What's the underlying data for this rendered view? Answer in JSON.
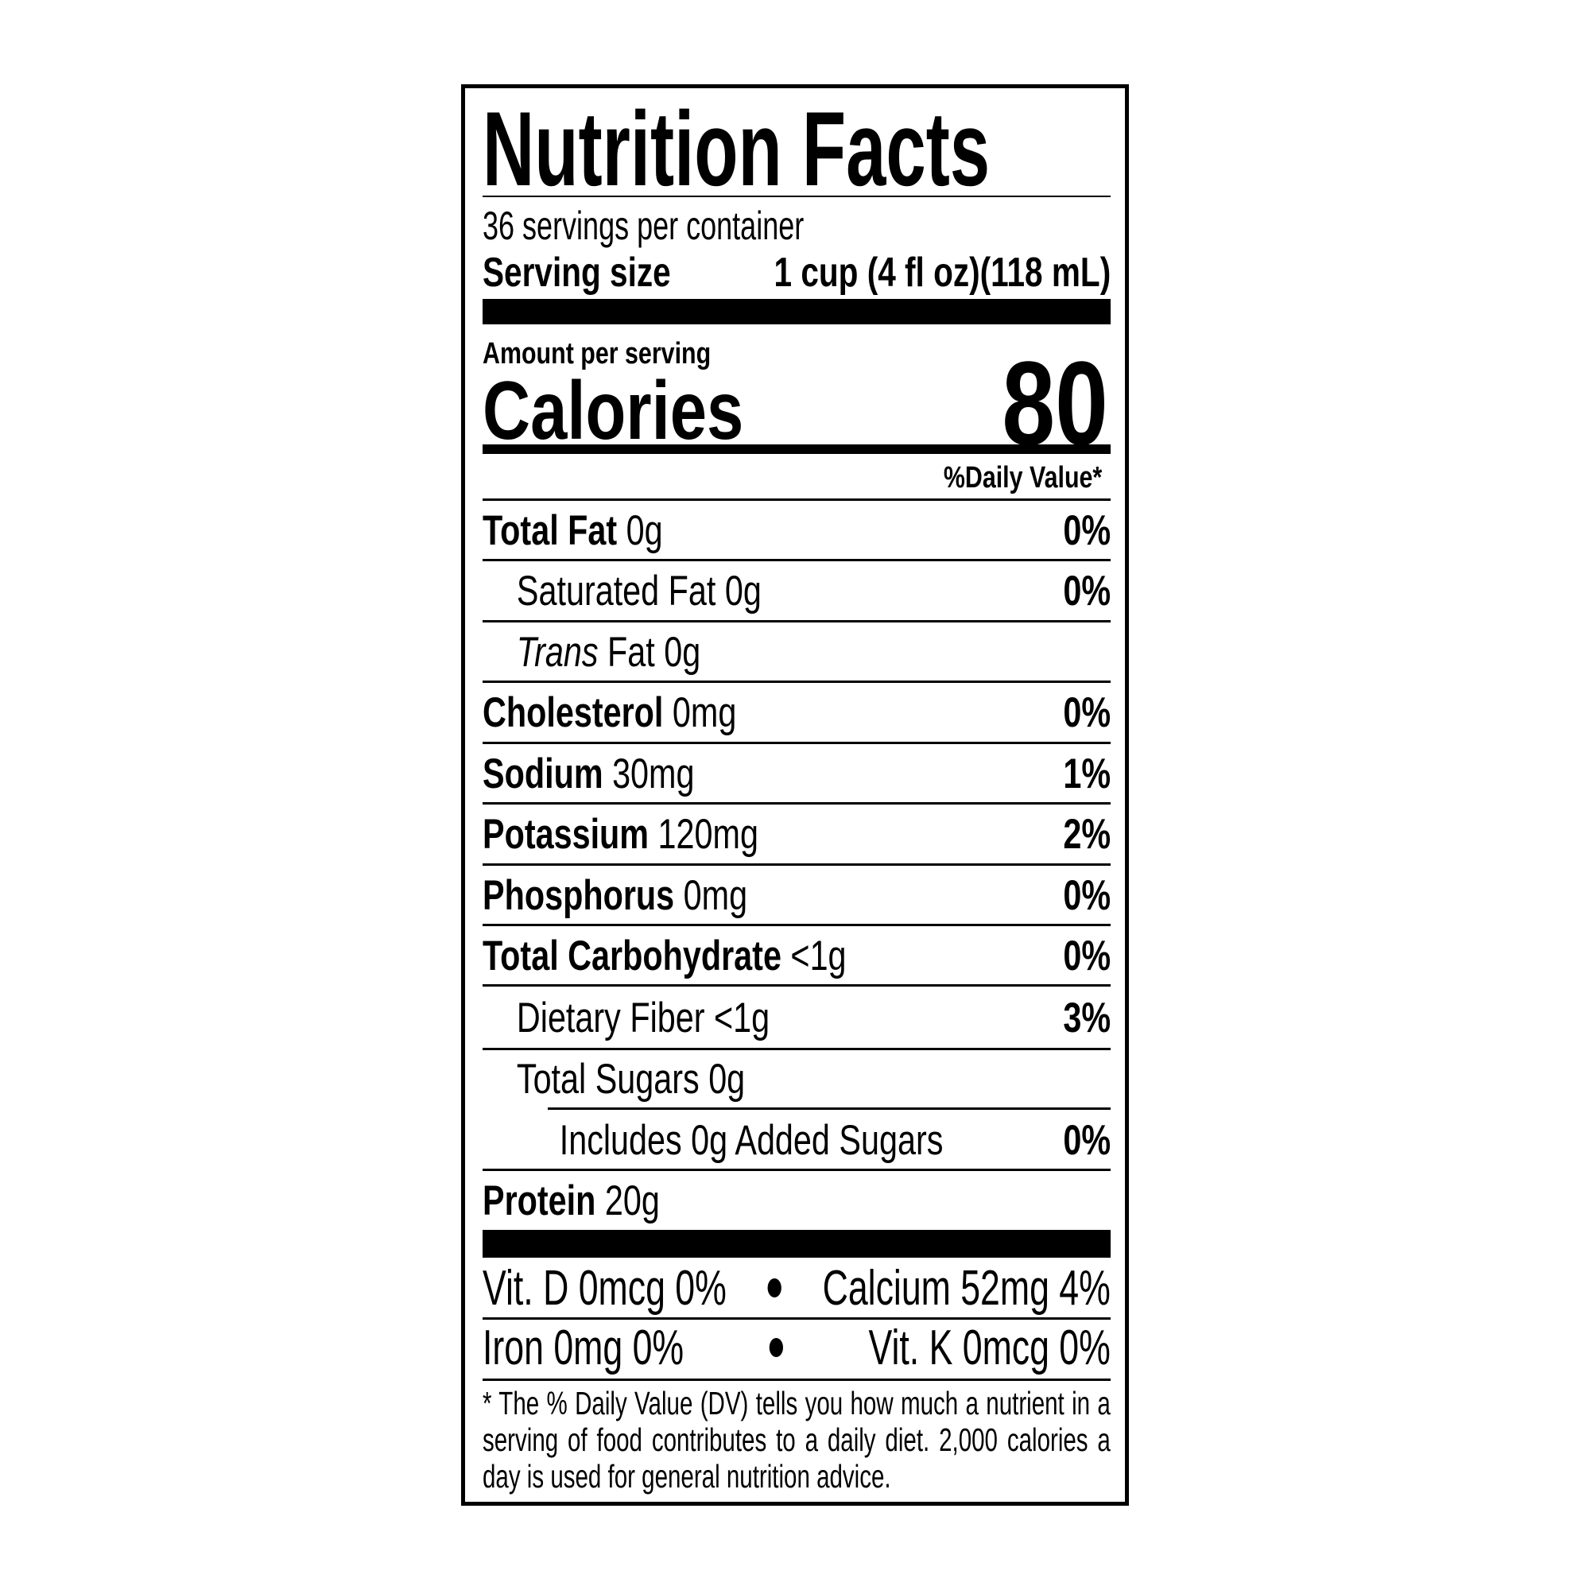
{
  "title": "Nutrition Facts",
  "servings_per_container": "36 servings per container",
  "serving_size_label": "Serving size",
  "serving_size_value": "1 cup (4 fl oz)(118 mL)",
  "amount_per_serving": "Amount per serving",
  "calories_label": "Calories",
  "calories_value": "80",
  "daily_value_header": "%Daily Value*",
  "nutrients": [
    {
      "name": "Total Fat",
      "amount": "0g",
      "dv": "0%"
    },
    {
      "name": "Saturated Fat",
      "amount": "0g",
      "dv": "0%"
    },
    {
      "name_italic": "Trans",
      "name": " Fat",
      "amount": "0g",
      "dv": ""
    },
    {
      "name": "Cholesterol",
      "amount": "0mg",
      "dv": "0%"
    },
    {
      "name": "Sodium",
      "amount": "30mg",
      "dv": "1%"
    },
    {
      "name": "Potassium",
      "amount": "120mg",
      "dv": "2%"
    },
    {
      "name": "Phosphorus",
      "amount": "0mg",
      "dv": "0%"
    },
    {
      "name": "Total Carbohydrate",
      "amount": "<1g",
      "dv": "0%"
    },
    {
      "name": "Dietary Fiber",
      "amount": "<1g",
      "dv": "3%"
    },
    {
      "name": "Total Sugars",
      "amount": "0g",
      "dv": ""
    },
    {
      "name": "Includes 0g Added Sugars",
      "amount": "",
      "dv": "0%"
    },
    {
      "name": "Protein",
      "amount": "20g",
      "dv": ""
    }
  ],
  "vitamins": [
    [
      "Vit. D 0mcg 0%",
      "Calcium 52mg 4%"
    ],
    [
      "Iron 0mg 0%",
      "Vit. K 0mcg 0%"
    ]
  ],
  "footnote": "* The % Daily Value (DV) tells you how much a nutrient in a serving of food contributes to a daily diet. 2,000 calories a day is used for general nutrition advice."
}
